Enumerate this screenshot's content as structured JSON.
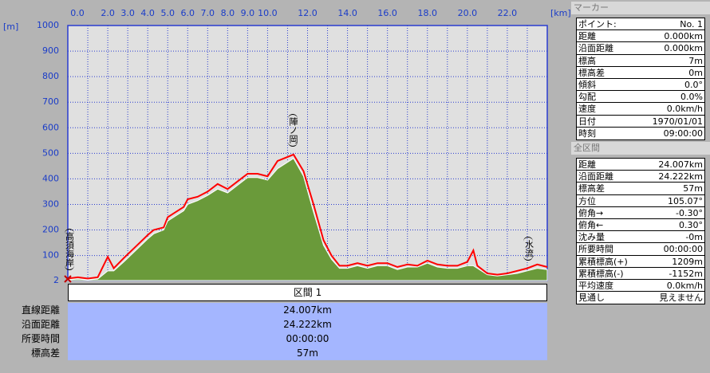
{
  "chart_data": {
    "type": "area",
    "ylabel": "[m]",
    "xlabel": "[km]",
    "xlim": [
      0,
      24
    ],
    "ylim": [
      2,
      1000
    ],
    "xticks": [
      {
        "value": 0,
        "label": "0.0"
      },
      {
        "value": 2,
        "label": "2.0"
      },
      {
        "value": 3,
        "label": "3.0"
      },
      {
        "value": 4,
        "label": "4.0"
      },
      {
        "value": 5,
        "label": "5.0"
      },
      {
        "value": 6,
        "label": "6.0"
      },
      {
        "value": 7,
        "label": "7.0"
      },
      {
        "value": 8,
        "label": "8.0"
      },
      {
        "value": 9,
        "label": "9.0"
      },
      {
        "value": 10,
        "label": "10.0"
      },
      {
        "value": 12,
        "label": "12.0"
      },
      {
        "value": 14,
        "label": "14.0"
      },
      {
        "value": 16,
        "label": "16.0"
      },
      {
        "value": 18,
        "label": "18.0"
      },
      {
        "value": 20,
        "label": "20.0"
      },
      {
        "value": 22,
        "label": "22.0"
      }
    ],
    "xgrid": [
      1,
      2,
      3,
      4,
      5,
      6,
      7,
      8,
      9,
      10,
      11,
      12,
      13,
      14,
      15,
      16,
      17,
      18,
      19,
      20,
      21,
      22,
      23
    ],
    "yticks": [
      2,
      100,
      200,
      300,
      400,
      500,
      600,
      700,
      800,
      900,
      1000
    ],
    "x": [
      0,
      0.5,
      1,
      1.5,
      2,
      2.3,
      2.8,
      3.2,
      3.6,
      4,
      4.3,
      4.8,
      5,
      5.4,
      5.8,
      6,
      6.5,
      7,
      7.5,
      8,
      8.5,
      9,
      9.5,
      10,
      10.5,
      11.3,
      11.8,
      12.3,
      12.8,
      13.2,
      13.6,
      14,
      14.5,
      15,
      15.5,
      16,
      16.5,
      17,
      17.5,
      18,
      18.5,
      19,
      19.5,
      20,
      20.3,
      20.5,
      21,
      21.5,
      22,
      22.5,
      23,
      23.5,
      24
    ],
    "series": [
      {
        "color": "#6a9a3a",
        "values": [
          5,
          8,
          5,
          8,
          40,
          40,
          75,
          105,
          135,
          165,
          185,
          200,
          235,
          255,
          275,
          300,
          315,
          335,
          360,
          345,
          375,
          405,
          405,
          395,
          440,
          480,
          410,
          270,
          140,
          85,
          50,
          50,
          60,
          50,
          60,
          60,
          45,
          55,
          55,
          70,
          55,
          50,
          50,
          60,
          60,
          50,
          25,
          20,
          25,
          30,
          40,
          50,
          45
        ]
      },
      {
        "color": "#ff0000",
        "values": [
          10,
          15,
          10,
          15,
          95,
          50,
          90,
          120,
          150,
          180,
          200,
          210,
          250,
          270,
          290,
          320,
          330,
          350,
          380,
          360,
          390,
          420,
          420,
          410,
          470,
          495,
          430,
          300,
          160,
          100,
          60,
          60,
          70,
          60,
          70,
          70,
          55,
          65,
          60,
          80,
          65,
          60,
          60,
          75,
          120,
          60,
          30,
          25,
          30,
          40,
          50,
          65,
          55
        ]
      }
    ],
    "annotations": [
      {
        "text": "高須海岸",
        "x": 0.1
      },
      {
        "text": "陣ノ岡",
        "x": 11.3
      },
      {
        "text": "水流",
        "x": 23.1
      }
    ]
  },
  "section": {
    "header": "区間 1",
    "rows": [
      [
        "直線距離",
        "24.007km"
      ],
      [
        "沿面距離",
        "24.222km"
      ],
      [
        "所要時間",
        "00:00:00"
      ],
      [
        "標高差",
        "57m"
      ]
    ]
  },
  "marker": {
    "title": "マーカー",
    "rows": [
      [
        "ポイント:",
        "No. 1"
      ],
      [
        "距離",
        "0.000km"
      ],
      [
        "沿面距離",
        "0.000km"
      ],
      [
        "標高",
        "7m"
      ],
      [
        "標高差",
        "0m"
      ],
      [
        "傾斜",
        "0.0°"
      ],
      [
        "勾配",
        "0.0%"
      ],
      [
        "速度",
        "0.0km/h"
      ],
      [
        "日付",
        "1970/01/01"
      ],
      [
        "時刻",
        "09:00:00"
      ]
    ]
  },
  "total": {
    "title": "全区間",
    "rows": [
      [
        "距離",
        "24.007km"
      ],
      [
        "沿面距離",
        "24.222km"
      ],
      [
        "標高差",
        "57m"
      ],
      [
        "方位",
        "105.07°"
      ],
      [
        "俯角→",
        "-0.30°"
      ],
      [
        "俯角←",
        "0.30°"
      ],
      [
        "沈み量",
        "-0m"
      ],
      [
        "所要時間",
        "00:00:00"
      ],
      [
        "累積標高(+)",
        "1209m"
      ],
      [
        "累積標高(-)",
        "-1152m"
      ],
      [
        "平均速度",
        "0.0km/h"
      ],
      [
        "見通し",
        "見えません"
      ]
    ]
  }
}
